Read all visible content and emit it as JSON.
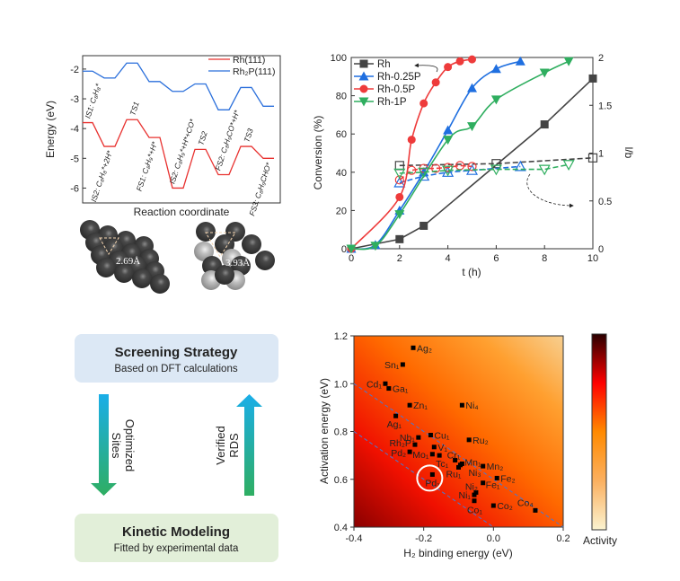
{
  "energy_profile": {
    "type": "line",
    "xlabel": "Reaction coordinate",
    "ylabel": "Energy (eV)",
    "ylim": [
      -6.5,
      -1.55
    ],
    "yticks": [
      -2,
      -3,
      -4,
      -5,
      -6
    ],
    "states": [
      "IS1: C₈H₈*",
      "IS2: C₈H₈*+2H*",
      "TS1",
      "FS1: C₈H₉*+H*",
      "IS2: C₈H₉*+H*+CO*",
      "TS2",
      "FS2: C₈H₉CO*+H*",
      "TS3",
      "FS3: C₈H₉CHO*"
    ],
    "series": [
      {
        "name": "Rh(111)",
        "color": "#e8312f",
        "values": [
          -3.8,
          -4.6,
          -3.7,
          -4.3,
          -6.0,
          -4.7,
          -5.55,
          -4.6,
          -5.0
        ]
      },
      {
        "name": "Rh₂P(111)",
        "color": "#2a6fdb",
        "values": [
          -2.07,
          -2.3,
          -1.8,
          -2.42,
          -2.75,
          -2.5,
          -3.37,
          -2.62,
          -3.25
        ]
      }
    ],
    "legend": "top-right"
  },
  "structures": {
    "left_distance": "2.69Å",
    "right_distance": "3.93Å"
  },
  "conversion_chart": {
    "type": "line",
    "xlabel": "t (h)",
    "ylabel": "Conversion (%)",
    "y2label": "l/b",
    "xlim": [
      0,
      10
    ],
    "ylim": [
      0,
      100
    ],
    "y2lim": [
      0,
      2
    ],
    "xticks": [
      0,
      2,
      4,
      6,
      8,
      10
    ],
    "yticks": [
      0,
      20,
      40,
      60,
      80,
      100
    ],
    "y2ticks": [
      "0",
      "0.5",
      "1",
      "1.5",
      "2"
    ],
    "legend": "top-left",
    "series": [
      {
        "name": "Rh",
        "color": "#444444",
        "marker": "square",
        "conversion": [
          [
            0,
            0
          ],
          [
            2,
            5
          ],
          [
            3,
            12
          ],
          [
            8,
            65
          ],
          [
            10,
            89
          ]
        ],
        "lb": [
          [
            2,
            0.87
          ],
          [
            6,
            0.89
          ],
          [
            10,
            0.95
          ]
        ]
      },
      {
        "name": "Rh-0.25P",
        "color": "#1f6fe0",
        "marker": "triangle-up",
        "conversion": [
          [
            0,
            0
          ],
          [
            1,
            2
          ],
          [
            2,
            20
          ],
          [
            3,
            40
          ],
          [
            4,
            62
          ],
          [
            5,
            84
          ],
          [
            6,
            94
          ],
          [
            7,
            98
          ]
        ],
        "lb": [
          [
            2,
            0.69
          ],
          [
            3,
            0.76
          ],
          [
            4,
            0.8
          ],
          [
            5,
            0.82
          ],
          [
            7,
            0.86
          ]
        ]
      },
      {
        "name": "Rh-0.5P",
        "color": "#ee3b3b",
        "marker": "circle",
        "conversion": [
          [
            0,
            0
          ],
          [
            2,
            27
          ],
          [
            2.5,
            57
          ],
          [
            3,
            76
          ],
          [
            3.5,
            87
          ],
          [
            4,
            95
          ],
          [
            4.5,
            98
          ],
          [
            5,
            99
          ]
        ],
        "lb": [
          [
            2,
            0.72
          ],
          [
            2.5,
            0.82
          ],
          [
            3,
            0.84
          ],
          [
            3.5,
            0.84
          ],
          [
            4,
            0.85
          ],
          [
            4.5,
            0.87
          ],
          [
            5,
            0.86
          ]
        ]
      },
      {
        "name": "Rh-1P",
        "color": "#2fae5f",
        "marker": "triangle-down",
        "conversion": [
          [
            0,
            0
          ],
          [
            1,
            1.5
          ],
          [
            2,
            18
          ],
          [
            4,
            57
          ],
          [
            5,
            64
          ],
          [
            6,
            78
          ],
          [
            8,
            92
          ],
          [
            9,
            98
          ]
        ],
        "lb": [
          [
            2,
            0.79
          ],
          [
            3,
            0.8
          ],
          [
            4,
            0.82
          ],
          [
            6,
            0.83
          ],
          [
            8,
            0.83
          ],
          [
            9,
            0.88
          ]
        ]
      }
    ]
  },
  "workflow": {
    "top_title": "Screening Strategy",
    "top_subtitle": "Based on DFT calculations",
    "down_label_1": "Optimized",
    "down_label_2": "Sites",
    "up_label_1": "Verified",
    "up_label_2": "RDS",
    "bottom_title": "Kinetic Modeling",
    "bottom_subtitle": "Fitted by experimental data",
    "top_color": "#dce8f5",
    "bottom_color": "#e2efd9"
  },
  "chart_data": {
    "type": "scatter",
    "xlabel": "H₂ binding energy (eV)",
    "ylabel": "Activation energy (eV)",
    "xlim": [
      -0.4,
      0.2
    ],
    "ylim": [
      0.4,
      1.2
    ],
    "xticks": [
      "-0.4",
      "-0.2",
      "0.0",
      "0.2"
    ],
    "yticks": [
      "0.4",
      "0.6",
      "0.8",
      "1.0",
      "1.2"
    ],
    "colorbar_label": "Activity",
    "highlighted": "Pd₁",
    "points": [
      {
        "label": "Ag₂",
        "x": -0.23,
        "y": 1.15
      },
      {
        "label": "Sn₁",
        "x": -0.26,
        "y": 1.08
      },
      {
        "label": "Cd₁",
        "x": -0.31,
        "y": 1.0
      },
      {
        "label": "Ga₁",
        "x": -0.3,
        "y": 0.98
      },
      {
        "label": "Zn₁",
        "x": -0.24,
        "y": 0.91
      },
      {
        "label": "Ni₄",
        "x": -0.09,
        "y": 0.91
      },
      {
        "label": "Ag₁",
        "x": -0.28,
        "y": 0.865
      },
      {
        "label": "Cu₁",
        "x": -0.18,
        "y": 0.785
      },
      {
        "label": "Nb₁",
        "x": -0.215,
        "y": 0.775
      },
      {
        "label": "Ru₂",
        "x": -0.07,
        "y": 0.765
      },
      {
        "label": "Rh₂P",
        "x": -0.225,
        "y": 0.745
      },
      {
        "label": "V₁",
        "x": -0.17,
        "y": 0.735
      },
      {
        "label": "Pd₂",
        "x": -0.24,
        "y": 0.715
      },
      {
        "label": "Mo₁",
        "x": -0.175,
        "y": 0.705
      },
      {
        "label": "Tc₁",
        "x": -0.155,
        "y": 0.7
      },
      {
        "label": "Cr₁",
        "x": -0.11,
        "y": 0.68
      },
      {
        "label": "Mn₁",
        "x": -0.09,
        "y": 0.665
      },
      {
        "label": "Ni₃",
        "x": -0.095,
        "y": 0.66
      },
      {
        "label": "Ru₁",
        "x": -0.1,
        "y": 0.65
      },
      {
        "label": "Mn₂",
        "x": -0.03,
        "y": 0.655
      },
      {
        "label": "Pd₁",
        "x": -0.175,
        "y": 0.62
      },
      {
        "label": "Fe₂",
        "x": 0.01,
        "y": 0.605
      },
      {
        "label": "Fe₁",
        "x": -0.03,
        "y": 0.585
      },
      {
        "label": "Ni₂",
        "x": -0.05,
        "y": 0.545
      },
      {
        "label": "Ni₁",
        "x": -0.055,
        "y": 0.535
      },
      {
        "label": "Co₁",
        "x": -0.055,
        "y": 0.51
      },
      {
        "label": "Co₂",
        "x": 0.0,
        "y": 0.49
      },
      {
        "label": "Co₄",
        "x": 0.12,
        "y": 0.47
      }
    ],
    "guide_lines": [
      [
        [
          -0.4,
          1.0
        ],
        [
          0.2,
          0.4
        ]
      ],
      [
        [
          -0.4,
          0.8
        ],
        [
          0.0,
          0.4
        ]
      ]
    ]
  }
}
